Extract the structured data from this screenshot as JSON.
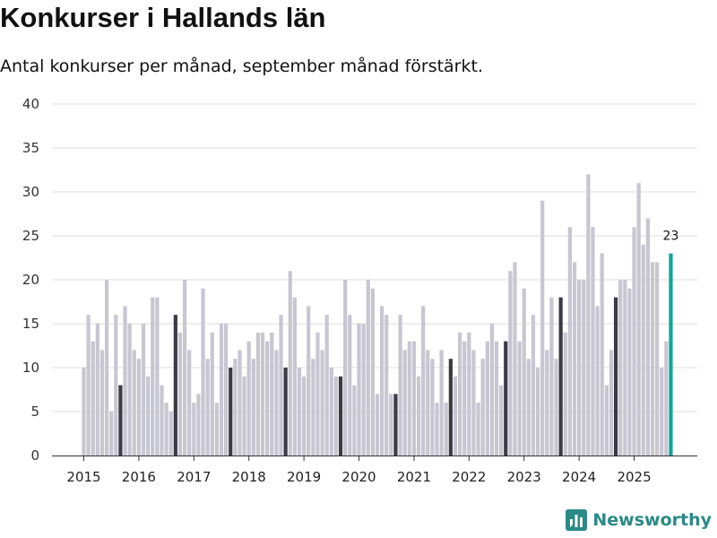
{
  "title": "Konkurser i Hallands län",
  "subtitle": "Antal konkurser per månad, september månad förstärkt.",
  "brand": {
    "name": "Newsworthy",
    "icon": "newsworthy-logo-icon"
  },
  "colors": {
    "bar": "#c7c6d1",
    "highlight": "#3b3a45",
    "current": "#12a497",
    "grid": "#dcdcdc"
  },
  "chart_data": {
    "type": "bar",
    "title": "Konkurser i Hallands län",
    "subtitle": "Antal konkurser per månad, september månad förstärkt.",
    "xlabel": "",
    "ylabel": "",
    "ylim": [
      0,
      40
    ],
    "yticks": [
      0,
      5,
      10,
      15,
      20,
      25,
      30,
      35,
      40
    ],
    "grid": true,
    "start": "2015-01",
    "highlight_month": 9,
    "x_tick_labels": [
      "2015",
      "2016",
      "2017",
      "2018",
      "2019",
      "2020",
      "2021",
      "2022",
      "2023",
      "2024",
      "2025"
    ],
    "values": [
      10,
      16,
      13,
      15,
      12,
      20,
      5,
      16,
      8,
      17,
      15,
      12,
      11,
      15,
      9,
      18,
      18,
      8,
      6,
      5,
      16,
      14,
      20,
      12,
      6,
      7,
      19,
      11,
      14,
      6,
      15,
      15,
      10,
      11,
      12,
      9,
      13,
      11,
      14,
      14,
      13,
      14,
      12,
      16,
      10,
      21,
      18,
      10,
      9,
      17,
      11,
      14,
      12,
      16,
      10,
      9,
      9,
      20,
      16,
      8,
      15,
      15,
      20,
      19,
      7,
      17,
      16,
      7,
      7,
      16,
      12,
      13,
      13,
      9,
      17,
      12,
      11,
      6,
      12,
      6,
      11,
      9,
      14,
      13,
      14,
      12,
      6,
      11,
      13,
      15,
      13,
      8,
      13,
      21,
      22,
      13,
      19,
      11,
      16,
      10,
      29,
      12,
      18,
      11,
      18,
      14,
      26,
      22,
      20,
      20,
      32,
      26,
      17,
      23,
      8,
      12,
      18,
      20,
      20,
      19,
      26,
      31,
      24,
      27,
      22,
      22,
      10,
      13,
      23
    ],
    "data_labels": [
      {
        "month": "2025-09",
        "value": 23,
        "text": "23"
      }
    ]
  }
}
